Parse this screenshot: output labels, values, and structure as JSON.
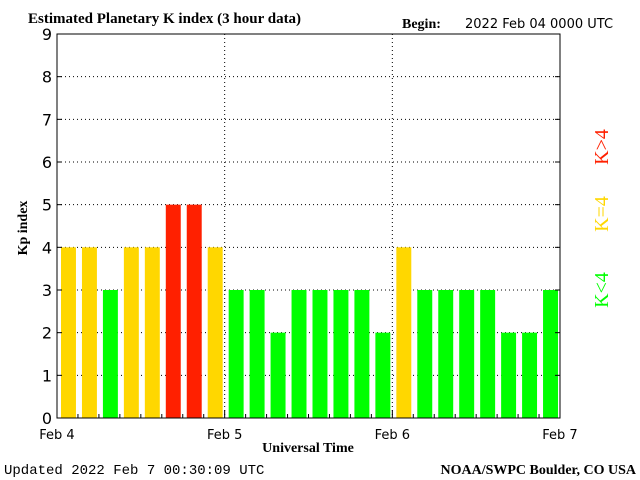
{
  "chart_data": {
    "type": "bar",
    "title": "Estimated Planetary K index (3 hour data)",
    "begin_label": "Begin:",
    "begin_value": "2022 Feb 04 0000 UTC",
    "ylabel": "Kp index",
    "xlabel": "Universal Time",
    "ylim": [
      0,
      9
    ],
    "yticks": [
      "0",
      "1",
      "2",
      "3",
      "4",
      "5",
      "6",
      "7",
      "8",
      "9"
    ],
    "xtick_labels": [
      "Feb 4",
      "Feb 5",
      "Feb 6",
      "Feb 7"
    ],
    "days": 3,
    "bars_per_day": 8,
    "values": [
      4,
      4,
      3,
      4,
      4,
      5,
      5,
      4,
      3,
      3,
      2,
      3,
      3,
      3,
      3,
      2,
      4,
      3,
      3,
      3,
      3,
      2,
      2,
      3
    ],
    "grid": true,
    "colors": {
      "low": "#00ff00",
      "equal": "#ffd700",
      "high": "#ff2000"
    },
    "legend": [
      {
        "label": "K>4",
        "color": "#ff2000"
      },
      {
        "label": "K=4",
        "color": "#ffd700"
      },
      {
        "label": "K<4",
        "color": "#00ff00"
      }
    ],
    "updated": "Updated 2022 Feb  7 00:30:09 UTC",
    "source": "NOAA/SWPC Boulder, CO USA"
  }
}
